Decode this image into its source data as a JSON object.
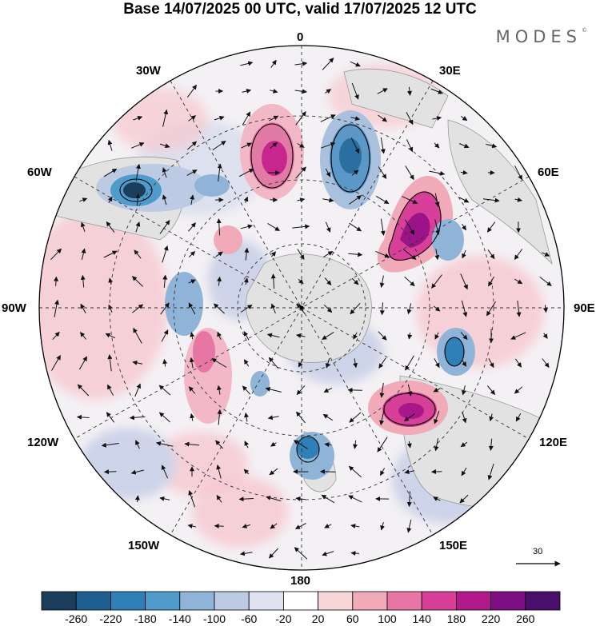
{
  "title": "Base 14/07/2025 00 UTC, valid 17/07/2025 12 UTC",
  "brand": "MODES",
  "brand_mark": "©",
  "longitude_labels": {
    "n0": "0",
    "n30e": "30E",
    "n60e": "60E",
    "n90e": "90E",
    "n120e": "120E",
    "n150e": "150E",
    "n180": "180",
    "n150w": "150W",
    "n120w": "120W",
    "n90w": "90W",
    "n60w": "60W",
    "n30w": "30W"
  },
  "vector_scale": "30",
  "colorbar": {
    "ticks": [
      "-260",
      "-220",
      "-180",
      "-140",
      "-100",
      "-60",
      "-20",
      "20",
      "60",
      "100",
      "140",
      "180",
      "220",
      "260"
    ],
    "colors": [
      "#1a3e5c",
      "#1f5f8f",
      "#2f7fb8",
      "#4f9ccc",
      "#8fb4d8",
      "#bccbe3",
      "#e1e2ef",
      "#ffffff",
      "#f7d6d8",
      "#f0aab8",
      "#e876a4",
      "#d83f98",
      "#b2198a",
      "#7d0f82",
      "#4a0f6b"
    ]
  },
  "colors": {
    "negative_strong": "#1f5f8f",
    "positive_strong": "#c0168a",
    "land": "#e6e6e6"
  }
}
